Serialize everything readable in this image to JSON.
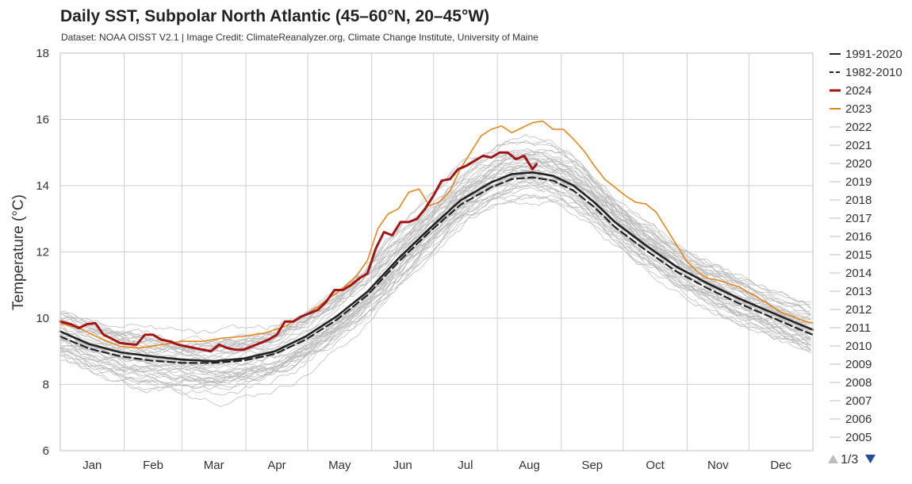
{
  "chart_data": {
    "type": "line",
    "title": "Daily SST, Subpolar North Atlantic (45–60°N, 20–45°W)",
    "subtitle": "Dataset: NOAA OISST V2.1 | Image Credit: ClimateReanalyzer.org, Climate Change Institute, University of Maine",
    "ylabel": "Temperature (°C)",
    "xlabel": "",
    "ylim": [
      6,
      18
    ],
    "xlim": [
      1,
      366
    ],
    "yticks": [
      "6",
      "8",
      "10",
      "12",
      "14",
      "16",
      "18"
    ],
    "months": [
      "Jan",
      "Feb",
      "Mar",
      "Apr",
      "May",
      "Jun",
      "Jul",
      "Aug",
      "Sep",
      "Oct",
      "Nov",
      "Dec"
    ],
    "grid": true,
    "legend_position": "right",
    "legend_pager": "1/3",
    "x_unit": "day of year",
    "series": [
      {
        "name": "1991-2020",
        "style": "solid",
        "color": "#222222",
        "width": 2.6,
        "x": [
          1,
          15,
          30,
          45,
          60,
          75,
          90,
          105,
          120,
          135,
          150,
          165,
          180,
          195,
          210,
          220,
          230,
          240,
          250,
          260,
          270,
          285,
          300,
          315,
          330,
          345,
          360,
          366
        ],
        "values": [
          9.6,
          9.22,
          8.97,
          8.85,
          8.75,
          8.7,
          8.78,
          9.0,
          9.45,
          10.05,
          10.8,
          11.8,
          12.7,
          13.55,
          14.1,
          14.35,
          14.4,
          14.3,
          14.0,
          13.5,
          12.9,
          12.2,
          11.55,
          11.05,
          10.6,
          10.2,
          9.8,
          9.65
        ]
      },
      {
        "name": "1982-2010",
        "style": "dashed",
        "color": "#222222",
        "width": 2.2,
        "x": [
          1,
          15,
          30,
          45,
          60,
          75,
          90,
          105,
          120,
          135,
          150,
          165,
          180,
          195,
          210,
          220,
          230,
          240,
          250,
          260,
          270,
          285,
          300,
          315,
          330,
          345,
          360,
          366
        ],
        "values": [
          9.45,
          9.08,
          8.85,
          8.72,
          8.65,
          8.65,
          8.72,
          8.92,
          9.35,
          9.95,
          10.7,
          11.7,
          12.6,
          13.42,
          13.95,
          14.2,
          14.25,
          14.15,
          13.85,
          13.35,
          12.75,
          12.05,
          11.4,
          10.9,
          10.45,
          10.05,
          9.65,
          9.5
        ]
      },
      {
        "name": "2024",
        "style": "solid",
        "color": "#a31515",
        "width": 3,
        "x": [
          1,
          6,
          10,
          14,
          18,
          22,
          26,
          30,
          34,
          38,
          42,
          46,
          50,
          54,
          58,
          62,
          66,
          70,
          74,
          78,
          82,
          86,
          90,
          94,
          98,
          102,
          106,
          110,
          114,
          118,
          122,
          126,
          130,
          134,
          138,
          142,
          146,
          150,
          154,
          158,
          162,
          166,
          170,
          174,
          178,
          182,
          186,
          190,
          194,
          198,
          202,
          206,
          210,
          214,
          218,
          222,
          226,
          230,
          232
        ],
        "values": [
          9.9,
          9.82,
          9.7,
          9.82,
          9.85,
          9.5,
          9.38,
          9.25,
          9.22,
          9.2,
          9.5,
          9.5,
          9.35,
          9.3,
          9.2,
          9.15,
          9.1,
          9.05,
          9.0,
          9.2,
          9.1,
          9.05,
          9.05,
          9.15,
          9.25,
          9.35,
          9.5,
          9.9,
          9.9,
          10.05,
          10.15,
          10.25,
          10.5,
          10.85,
          10.85,
          11.0,
          11.2,
          11.35,
          12.1,
          12.6,
          12.5,
          12.9,
          12.9,
          13.0,
          13.3,
          13.7,
          14.15,
          14.2,
          14.5,
          14.6,
          14.75,
          14.9,
          14.85,
          15.0,
          15.0,
          14.8,
          14.9,
          14.5,
          14.65
        ]
      },
      {
        "name": "2023",
        "style": "solid",
        "color": "#e8861a",
        "width": 1.6,
        "x": [
          1,
          10,
          20,
          30,
          40,
          50,
          60,
          70,
          80,
          90,
          100,
          110,
          115,
          120,
          125,
          130,
          135,
          140,
          145,
          150,
          155,
          160,
          165,
          170,
          175,
          180,
          185,
          190,
          195,
          200,
          205,
          210,
          215,
          220,
          225,
          230,
          235,
          240,
          245,
          250,
          255,
          260,
          265,
          270,
          275,
          280,
          285,
          290,
          295,
          300,
          305,
          310,
          315,
          320,
          325,
          330,
          340,
          350,
          360,
          366
        ],
        "values": [
          9.85,
          9.7,
          9.4,
          9.15,
          9.1,
          9.2,
          9.3,
          9.3,
          9.4,
          9.45,
          9.55,
          9.75,
          9.95,
          10.1,
          10.3,
          10.55,
          10.75,
          11.0,
          11.3,
          11.75,
          12.7,
          13.15,
          13.3,
          13.8,
          13.9,
          13.4,
          13.5,
          13.85,
          14.5,
          15.0,
          15.5,
          15.7,
          15.8,
          15.6,
          15.75,
          15.9,
          15.95,
          15.7,
          15.7,
          15.4,
          15.05,
          14.6,
          14.2,
          13.95,
          13.7,
          13.5,
          13.45,
          13.2,
          12.7,
          12.2,
          11.7,
          11.4,
          11.2,
          11.15,
          11.05,
          10.95,
          10.6,
          10.2,
          9.95,
          9.85
        ]
      },
      {
        "name": "2022",
        "style": "solid",
        "color": "#c2c2c2",
        "width": 0.8
      },
      {
        "name": "2021",
        "style": "solid",
        "color": "#c2c2c2",
        "width": 0.8
      },
      {
        "name": "2020",
        "style": "solid",
        "color": "#c2c2c2",
        "width": 0.8
      },
      {
        "name": "2019",
        "style": "solid",
        "color": "#c2c2c2",
        "width": 0.8
      },
      {
        "name": "2018",
        "style": "solid",
        "color": "#c2c2c2",
        "width": 0.8
      },
      {
        "name": "2017",
        "style": "solid",
        "color": "#c2c2c2",
        "width": 0.8
      },
      {
        "name": "2016",
        "style": "solid",
        "color": "#c2c2c2",
        "width": 0.8
      },
      {
        "name": "2015",
        "style": "solid",
        "color": "#c2c2c2",
        "width": 0.8
      },
      {
        "name": "2014",
        "style": "solid",
        "color": "#c2c2c2",
        "width": 0.8
      },
      {
        "name": "2013",
        "style": "solid",
        "color": "#c2c2c2",
        "width": 0.8
      },
      {
        "name": "2012",
        "style": "solid",
        "color": "#c2c2c2",
        "width": 0.8
      },
      {
        "name": "2011",
        "style": "solid",
        "color": "#c2c2c2",
        "width": 0.8
      },
      {
        "name": "2010",
        "style": "solid",
        "color": "#c2c2c2",
        "width": 0.8
      },
      {
        "name": "2009",
        "style": "solid",
        "color": "#c2c2c2",
        "width": 0.8
      },
      {
        "name": "2008",
        "style": "solid",
        "color": "#c2c2c2",
        "width": 0.8
      },
      {
        "name": "2007",
        "style": "solid",
        "color": "#c2c2c2",
        "width": 0.8
      },
      {
        "name": "2006",
        "style": "solid",
        "color": "#c2c2c2",
        "width": 0.8
      },
      {
        "name": "2005",
        "style": "solid",
        "color": "#c2c2c2",
        "width": 0.8
      }
    ]
  },
  "colors": {
    "grid": "#cfcfcf",
    "axis_frame": "#bfbfbf",
    "pager_up": "#bdbdbd",
    "pager_down": "#1f4ea3"
  }
}
